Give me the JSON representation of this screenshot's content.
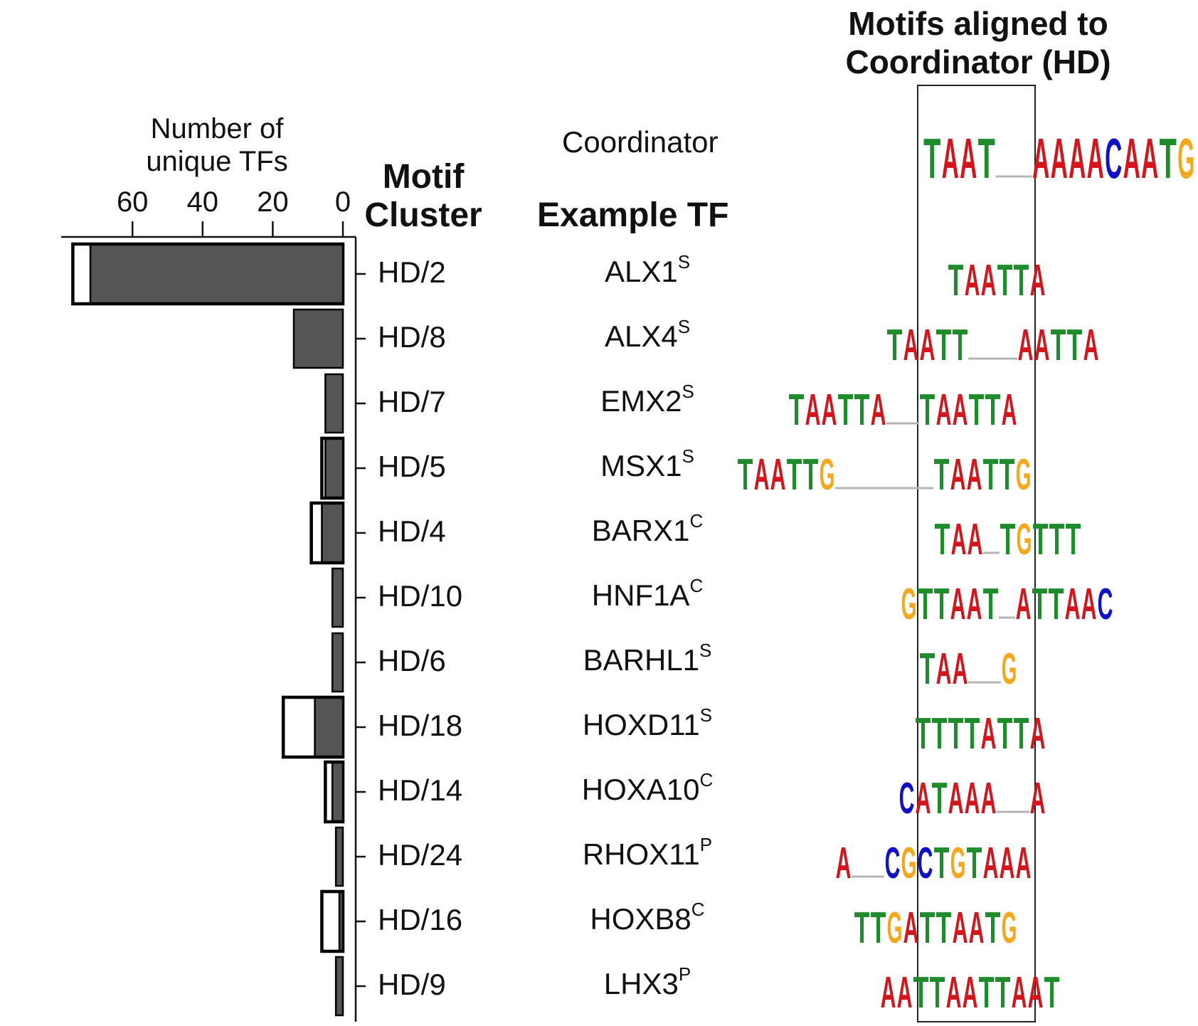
{
  "chart_data": {
    "type": "bar",
    "orientation": "horizontal",
    "x_axis_title": "Number of unique TFs",
    "x_ticks": [
      60,
      40,
      20,
      0
    ],
    "xlim": [
      0,
      78
    ],
    "column_headers": {
      "cluster": "Motif Cluster",
      "example_tf": "Example TF",
      "motif_panel": "Motifs aligned to Coordinator (HD)"
    },
    "coordinator_label": "Coordinator",
    "coordinator_logo": "TAAT  AAAACAATG",
    "colors": {
      "bar_fill": "#555555",
      "bar_outline": "#000000",
      "A": "#d4161c",
      "C": "#1010c8",
      "G": "#f5a81b",
      "T": "#1e8c2a"
    },
    "rows": [
      {
        "cluster": "HD/2",
        "tf": "ALX1",
        "sup": "S",
        "filled": 72,
        "total": 77,
        "logo": "TAATTA"
      },
      {
        "cluster": "HD/8",
        "tf": "ALX4",
        "sup": "S",
        "filled": 14,
        "total": 14,
        "logo": "TAATT   AATTA"
      },
      {
        "cluster": "HD/7",
        "tf": "EMX2",
        "sup": "S",
        "filled": 5,
        "total": 5,
        "logo": "TAATTA  TAATTA"
      },
      {
        "cluster": "HD/5",
        "tf": "MSX1",
        "sup": "S",
        "filled": 5,
        "total": 6,
        "logo": "TAATTG      TAATTG"
      },
      {
        "cluster": "HD/4",
        "tf": "BARX1",
        "sup": "C",
        "filled": 6,
        "total": 9,
        "logo": "TAA TGTTT"
      },
      {
        "cluster": "HD/10",
        "tf": "HNF1A",
        "sup": "C",
        "filled": 3,
        "total": 3,
        "logo": "GTTAAT ATTAAC"
      },
      {
        "cluster": "HD/6",
        "tf": "BARHL1",
        "sup": "S",
        "filled": 3,
        "total": 3,
        "logo": "TAA  G"
      },
      {
        "cluster": "HD/18",
        "tf": "HOXD11",
        "sup": "S",
        "filled": 8,
        "total": 17,
        "logo": "TTTTATTA"
      },
      {
        "cluster": "HD/14",
        "tf": "HOXA10",
        "sup": "C",
        "filled": 3,
        "total": 5,
        "logo": "CATAAA  A"
      },
      {
        "cluster": "HD/24",
        "tf": "RHOX11",
        "sup": "P",
        "filled": 2,
        "total": 2,
        "logo": "A  CGCTGTAAA"
      },
      {
        "cluster": "HD/16",
        "tf": "HOXB8",
        "sup": "C",
        "filled": 1,
        "total": 6,
        "logo": "TTGATTAATG"
      },
      {
        "cluster": "HD/9",
        "tf": "LHX3",
        "sup": "P",
        "filled": 2,
        "total": 2,
        "logo": "AATTAATTAAT"
      }
    ]
  }
}
